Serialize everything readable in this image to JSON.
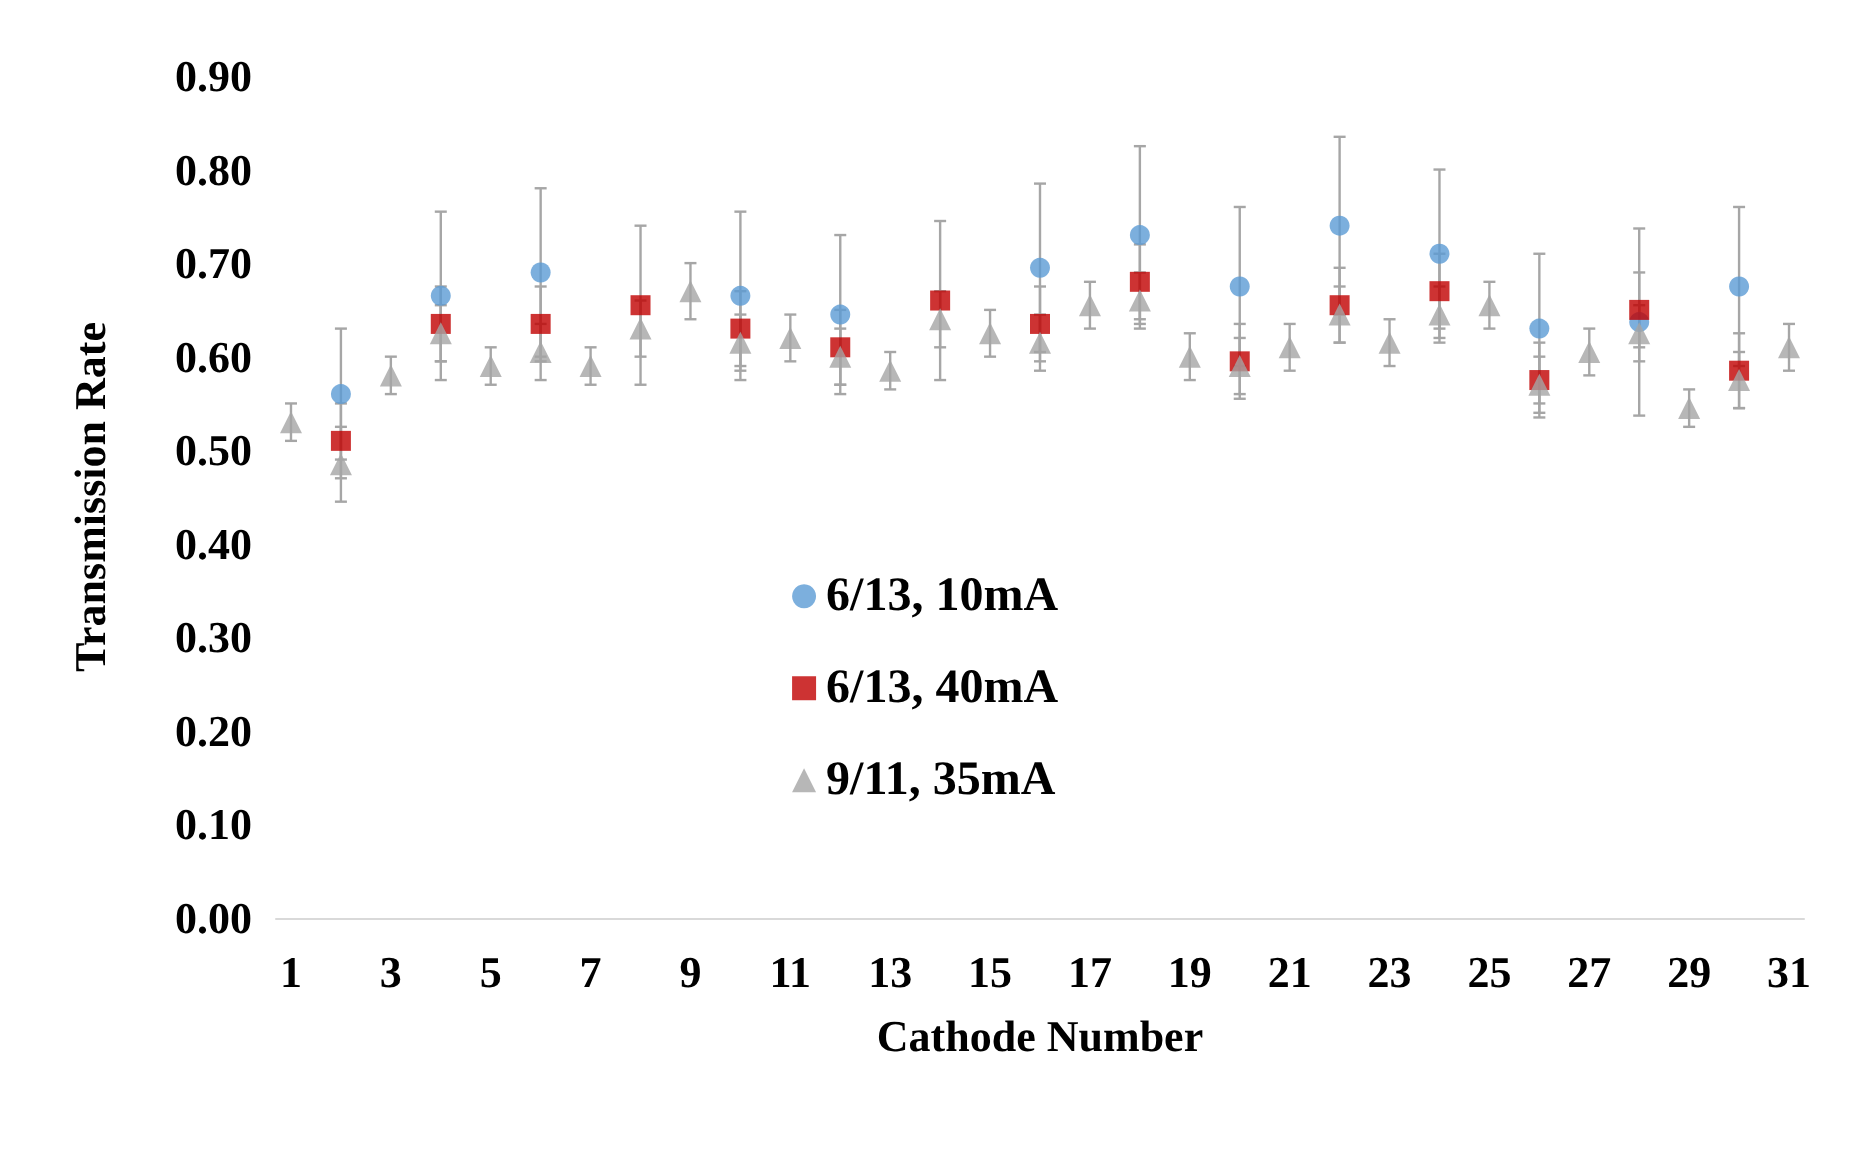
{
  "chart_data": {
    "type": "scatter",
    "xlabel": "Cathode Number",
    "ylabel": "Transmission Rate",
    "xlim": [
      0.7,
      31.3
    ],
    "xticks": [
      1,
      3,
      5,
      7,
      9,
      11,
      13,
      15,
      17,
      19,
      21,
      23,
      25,
      27,
      29,
      31
    ],
    "ylim": [
      0,
      0.9
    ],
    "yticks": [
      {
        "value": 0,
        "label": "0.00"
      },
      {
        "value": 0.1,
        "label": "0.10"
      },
      {
        "value": 0.2,
        "label": "0.20"
      },
      {
        "value": 0.3,
        "label": "0.30"
      },
      {
        "value": 0.4,
        "label": "0.40"
      },
      {
        "value": 0.5,
        "label": "0.50"
      },
      {
        "value": 0.6,
        "label": "0.60"
      },
      {
        "value": 0.7,
        "label": "0.70"
      },
      {
        "value": 0.8,
        "label": "0.80"
      },
      {
        "value": 0.9,
        "label": "0.90"
      }
    ],
    "grid": false,
    "legend": "center",
    "series": [
      {
        "name": "6/13, 10mA",
        "color": "#5b9bd5",
        "marker": "circle",
        "x": [
          2,
          4,
          6,
          8,
          10,
          12,
          14,
          16,
          18,
          20,
          22,
          24,
          26,
          28,
          30
        ],
        "values": [
          0.56,
          0.665,
          0.69,
          null,
          0.665,
          0.645,
          null,
          0.695,
          0.73,
          0.675,
          0.74,
          0.71,
          0.63,
          0.637,
          0.675
        ],
        "errors": [
          0.07,
          0.09,
          0.09,
          null,
          0.09,
          0.085,
          null,
          0.09,
          0.095,
          0.085,
          0.095,
          0.09,
          0.08,
          0.1,
          0.085
        ]
      },
      {
        "name": "6/13, 40mA",
        "color": "#c00000",
        "marker": "square",
        "x": [
          2,
          4,
          6,
          8,
          10,
          12,
          14,
          16,
          18,
          20,
          22,
          24,
          26,
          28,
          30
        ],
        "values": [
          0.51,
          0.635,
          0.635,
          0.655,
          0.63,
          0.61,
          0.66,
          0.635,
          0.68,
          0.595,
          0.655,
          0.67,
          0.575,
          0.65,
          0.585
        ],
        "errors": [
          0.04,
          0.04,
          0.04,
          0.085,
          0.04,
          0.04,
          0.085,
          0.04,
          0.04,
          0.04,
          0.04,
          0.04,
          0.04,
          0.04,
          0.04
        ]
      },
      {
        "name": "9/11, 35mA",
        "color": "#a5a5a5",
        "marker": "triangle",
        "x": [
          1,
          2,
          3,
          4,
          5,
          6,
          7,
          8,
          9,
          10,
          11,
          12,
          13,
          14,
          15,
          16,
          17,
          18,
          19,
          20,
          21,
          22,
          23,
          24,
          25,
          26,
          27,
          28,
          29,
          30,
          31
        ],
        "values": [
          0.53,
          0.485,
          0.58,
          0.625,
          0.59,
          0.605,
          0.59,
          0.63,
          0.67,
          0.615,
          0.62,
          0.6,
          0.585,
          0.64,
          0.625,
          0.615,
          0.655,
          0.66,
          0.6,
          0.59,
          0.61,
          0.645,
          0.615,
          0.645,
          0.655,
          0.57,
          0.605,
          0.625,
          0.545,
          0.575,
          0.61
        ],
        "errors": [
          0.02,
          0.04,
          0.02,
          0.03,
          0.02,
          0.03,
          0.02,
          0.03,
          0.03,
          0.03,
          0.025,
          0.03,
          0.02,
          0.03,
          0.025,
          0.03,
          0.025,
          0.03,
          0.025,
          0.03,
          0.025,
          0.03,
          0.025,
          0.03,
          0.025,
          0.03,
          0.025,
          0.03,
          0.02,
          0.03,
          0.025
        ]
      }
    ]
  }
}
